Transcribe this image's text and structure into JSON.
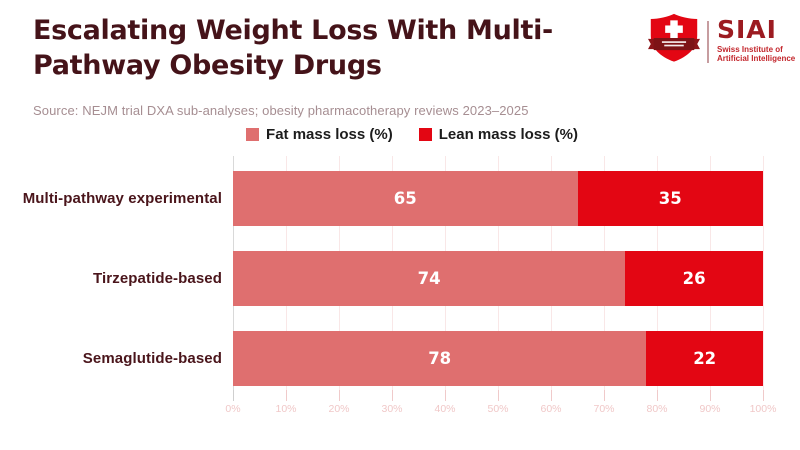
{
  "header": {
    "title_line1": "Escalating Weight Loss With Multi-",
    "title_line2": "Pathway Obesity Drugs",
    "source": "Source: NEJM trial DXA sub-analyses; obesity pharmacotherapy reviews 2023–2025"
  },
  "logo": {
    "wordmark": "SIAI",
    "tagline_line1": "Swiss Institute of",
    "tagline_line2": "Artificial Intelligence"
  },
  "colors": {
    "fat_segment": "#df6f6f",
    "lean_segment": "#e30613",
    "title_text": "#451319",
    "category_text": "#4a151b",
    "source_text": "#a68e92",
    "gridline": "#f9e7e7",
    "tick_label": "#f0c8c8",
    "value_label": "#ffffff"
  },
  "chart_data": {
    "type": "bar",
    "orientation": "horizontal",
    "stacked": true,
    "title": "Escalating Weight Loss With Multi-Pathway Obesity Drugs",
    "categories": [
      "Multi-pathway experimental",
      "Tirzepatide-based",
      "Semaglutide-based"
    ],
    "series": [
      {
        "name": "Fat mass loss (%)",
        "color": "#df6f6f",
        "values": [
          65,
          74,
          78
        ]
      },
      {
        "name": "Lean mass loss (%)",
        "color": "#e30613",
        "values": [
          35,
          26,
          22
        ]
      }
    ],
    "x_ticks": [
      "0%",
      "10%",
      "20%",
      "30%",
      "40%",
      "50%",
      "60%",
      "70%",
      "80%",
      "90%",
      "100%"
    ],
    "xlim": [
      0,
      100
    ],
    "grid": true,
    "legend_position": "top",
    "value_labels": true
  }
}
